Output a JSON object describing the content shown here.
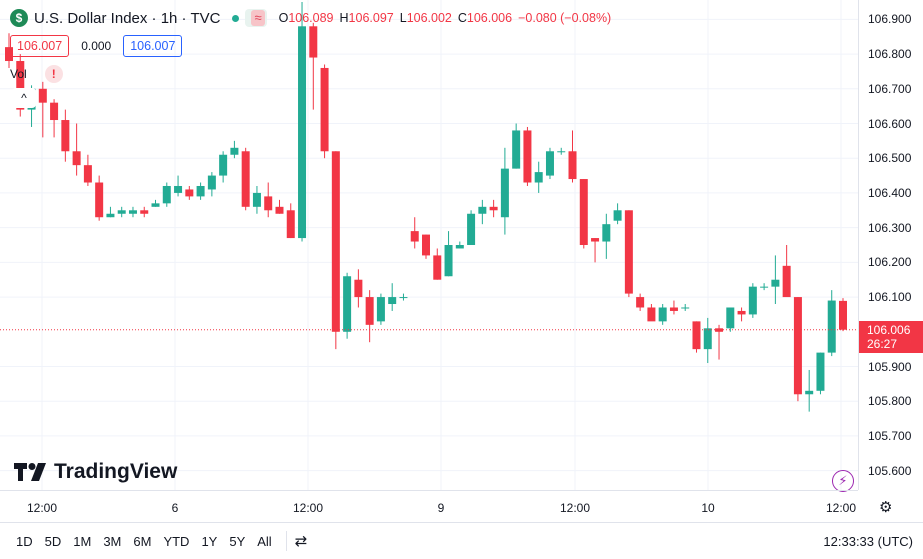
{
  "header": {
    "symbol_icon": "$",
    "title": "U.S. Dollar Index · 1h · TVC",
    "ohlc": {
      "o_label": "O",
      "o_value": "106.089",
      "h_label": "H",
      "h_value": "106.097",
      "l_label": "L",
      "l_value": "106.002",
      "c_label": "C",
      "c_value": "106.006",
      "change": "−0.080 (−0.08%)"
    },
    "indicator_icon": "≈"
  },
  "prices": {
    "sell": "106.007",
    "spread": "0.000",
    "buy": "106.007"
  },
  "volume": {
    "label": "Vol",
    "warning_icon": "!"
  },
  "collapse_icon": "^",
  "logo": "TradingView",
  "price_scale": {
    "labels": [
      "106.900",
      "106.800",
      "106.700",
      "106.600",
      "106.500",
      "106.400",
      "106.300",
      "106.200",
      "106.100",
      "105.900",
      "105.800",
      "105.700",
      "105.600"
    ],
    "last_price": "106.006",
    "countdown": "26:27"
  },
  "time_scale": {
    "labels": [
      "12:00",
      "6",
      "12:00",
      "9",
      "12:00",
      "10",
      "12:00"
    ]
  },
  "bottom_bar": {
    "timeframes": [
      "1D",
      "5D",
      "1M",
      "3M",
      "6M",
      "YTD",
      "1Y",
      "5Y",
      "All"
    ],
    "clock": "12:33:33 (UTC)"
  },
  "colors": {
    "up": "#22ab94",
    "down": "#f23645",
    "grid": "#f0f3fa",
    "accent": "#2962ff"
  },
  "chart_data": {
    "type": "candlestick",
    "title": "U.S. Dollar Index",
    "interval": "1h",
    "ylim": [
      105.55,
      106.95
    ],
    "last_close": 106.006,
    "candles": [
      {
        "o": 106.82,
        "h": 106.86,
        "l": 106.76,
        "c": 106.78
      },
      {
        "o": 106.78,
        "h": 106.8,
        "l": 106.62,
        "c": 106.64
      },
      {
        "o": 106.64,
        "h": 106.71,
        "l": 106.59,
        "c": 106.7
      },
      {
        "o": 106.7,
        "h": 106.72,
        "l": 106.56,
        "c": 106.66
      },
      {
        "o": 106.66,
        "h": 106.67,
        "l": 106.56,
        "c": 106.61
      },
      {
        "o": 106.61,
        "h": 106.64,
        "l": 106.49,
        "c": 106.52
      },
      {
        "o": 106.52,
        "h": 106.6,
        "l": 106.45,
        "c": 106.48
      },
      {
        "o": 106.48,
        "h": 106.51,
        "l": 106.42,
        "c": 106.43
      },
      {
        "o": 106.43,
        "h": 106.45,
        "l": 106.32,
        "c": 106.33
      },
      {
        "o": 106.33,
        "h": 106.36,
        "l": 106.33,
        "c": 106.34
      },
      {
        "o": 106.34,
        "h": 106.36,
        "l": 106.33,
        "c": 106.35
      },
      {
        "o": 106.34,
        "h": 106.36,
        "l": 106.33,
        "c": 106.35
      },
      {
        "o": 106.35,
        "h": 106.36,
        "l": 106.33,
        "c": 106.34
      },
      {
        "o": 106.36,
        "h": 106.38,
        "l": 106.36,
        "c": 106.37
      },
      {
        "o": 106.37,
        "h": 106.43,
        "l": 106.36,
        "c": 106.42
      },
      {
        "o": 106.4,
        "h": 106.45,
        "l": 106.39,
        "c": 106.42
      },
      {
        "o": 106.41,
        "h": 106.42,
        "l": 106.38,
        "c": 106.39
      },
      {
        "o": 106.39,
        "h": 106.43,
        "l": 106.38,
        "c": 106.42
      },
      {
        "o": 106.41,
        "h": 106.46,
        "l": 106.39,
        "c": 106.45
      },
      {
        "o": 106.45,
        "h": 106.52,
        "l": 106.43,
        "c": 106.51
      },
      {
        "o": 106.51,
        "h": 106.55,
        "l": 106.5,
        "c": 106.53
      },
      {
        "o": 106.52,
        "h": 106.53,
        "l": 106.35,
        "c": 106.36
      },
      {
        "o": 106.36,
        "h": 106.42,
        "l": 106.34,
        "c": 106.4
      },
      {
        "o": 106.39,
        "h": 106.43,
        "l": 106.33,
        "c": 106.35
      },
      {
        "o": 106.36,
        "h": 106.38,
        "l": 106.34,
        "c": 106.34
      },
      {
        "o": 106.35,
        "h": 106.37,
        "l": 106.27,
        "c": 106.27
      },
      {
        "o": 106.27,
        "h": 106.95,
        "l": 106.26,
        "c": 106.88
      },
      {
        "o": 106.88,
        "h": 106.89,
        "l": 106.64,
        "c": 106.79
      },
      {
        "o": 106.76,
        "h": 106.77,
        "l": 106.5,
        "c": 106.52
      },
      {
        "o": 106.52,
        "h": 106.52,
        "l": 105.95,
        "c": 106.0
      },
      {
        "o": 106.0,
        "h": 106.17,
        "l": 105.98,
        "c": 106.16
      },
      {
        "o": 106.15,
        "h": 106.18,
        "l": 106.07,
        "c": 106.1
      },
      {
        "o": 106.1,
        "h": 106.12,
        "l": 105.97,
        "c": 106.02
      },
      {
        "o": 106.03,
        "h": 106.11,
        "l": 106.02,
        "c": 106.1
      },
      {
        "o": 106.08,
        "h": 106.14,
        "l": 106.06,
        "c": 106.1
      },
      {
        "o": 106.1,
        "h": 106.11,
        "l": 106.09,
        "c": 106.1
      },
      {
        "o": 106.29,
        "h": 106.33,
        "l": 106.24,
        "c": 106.26
      },
      {
        "o": 106.28,
        "h": 106.28,
        "l": 106.21,
        "c": 106.22
      },
      {
        "o": 106.22,
        "h": 106.24,
        "l": 106.15,
        "c": 106.15
      },
      {
        "o": 106.16,
        "h": 106.29,
        "l": 106.16,
        "c": 106.25
      },
      {
        "o": 106.24,
        "h": 106.26,
        "l": 106.24,
        "c": 106.25
      },
      {
        "o": 106.25,
        "h": 106.35,
        "l": 106.25,
        "c": 106.34
      },
      {
        "o": 106.34,
        "h": 106.38,
        "l": 106.31,
        "c": 106.36
      },
      {
        "o": 106.36,
        "h": 106.38,
        "l": 106.33,
        "c": 106.35
      },
      {
        "o": 106.33,
        "h": 106.53,
        "l": 106.28,
        "c": 106.47
      },
      {
        "o": 106.47,
        "h": 106.6,
        "l": 106.47,
        "c": 106.58
      },
      {
        "o": 106.58,
        "h": 106.59,
        "l": 106.42,
        "c": 106.43
      },
      {
        "o": 106.43,
        "h": 106.49,
        "l": 106.4,
        "c": 106.46
      },
      {
        "o": 106.45,
        "h": 106.53,
        "l": 106.44,
        "c": 106.52
      },
      {
        "o": 106.52,
        "h": 106.53,
        "l": 106.51,
        "c": 106.52
      },
      {
        "o": 106.52,
        "h": 106.58,
        "l": 106.43,
        "c": 106.44
      },
      {
        "o": 106.44,
        "h": 106.44,
        "l": 106.24,
        "c": 106.25
      },
      {
        "o": 106.27,
        "h": 106.27,
        "l": 106.2,
        "c": 106.26
      },
      {
        "o": 106.26,
        "h": 106.34,
        "l": 106.21,
        "c": 106.31
      },
      {
        "o": 106.32,
        "h": 106.37,
        "l": 106.31,
        "c": 106.35
      },
      {
        "o": 106.35,
        "h": 106.35,
        "l": 106.1,
        "c": 106.11
      },
      {
        "o": 106.1,
        "h": 106.11,
        "l": 106.06,
        "c": 106.07
      },
      {
        "o": 106.07,
        "h": 106.08,
        "l": 106.04,
        "c": 106.03
      },
      {
        "o": 106.03,
        "h": 106.08,
        "l": 106.02,
        "c": 106.07
      },
      {
        "o": 106.07,
        "h": 106.09,
        "l": 106.05,
        "c": 106.06
      },
      {
        "o": 106.07,
        "h": 106.08,
        "l": 106.06,
        "c": 106.07
      },
      {
        "o": 106.03,
        "h": 106.03,
        "l": 105.94,
        "c": 105.95
      },
      {
        "o": 105.95,
        "h": 106.04,
        "l": 105.91,
        "c": 106.01
      },
      {
        "o": 106.01,
        "h": 106.02,
        "l": 105.92,
        "c": 106.0
      },
      {
        "o": 106.01,
        "h": 106.07,
        "l": 106.0,
        "c": 106.07
      },
      {
        "o": 106.06,
        "h": 106.07,
        "l": 106.03,
        "c": 106.05
      },
      {
        "o": 106.05,
        "h": 106.14,
        "l": 106.04,
        "c": 106.13
      },
      {
        "o": 106.13,
        "h": 106.14,
        "l": 106.12,
        "c": 106.13
      },
      {
        "o": 106.13,
        "h": 106.22,
        "l": 106.08,
        "c": 106.15
      },
      {
        "o": 106.19,
        "h": 106.25,
        "l": 106.11,
        "c": 106.1
      },
      {
        "o": 106.1,
        "h": 106.1,
        "l": 105.8,
        "c": 105.82
      },
      {
        "o": 105.82,
        "h": 105.89,
        "l": 105.77,
        "c": 105.83
      },
      {
        "o": 105.83,
        "h": 105.94,
        "l": 105.82,
        "c": 105.94
      },
      {
        "o": 105.94,
        "h": 106.12,
        "l": 105.93,
        "c": 106.09
      },
      {
        "o": 106.089,
        "h": 106.097,
        "l": 106.002,
        "c": 106.006
      }
    ]
  }
}
